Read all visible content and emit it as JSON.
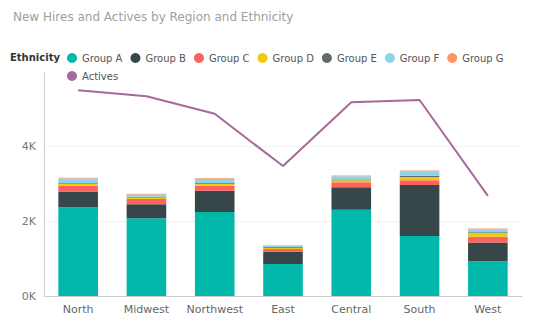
{
  "chart_data": {
    "type": "bar",
    "title": "New Hires and Actives by Region and Ethnicity",
    "legend_title": "Ethnicity",
    "categories": [
      "North",
      "Midwest",
      "Northwest",
      "East",
      "Central",
      "South",
      "West"
    ],
    "stacked": true,
    "grid": true,
    "legend": "top-left",
    "ylim": [
      0,
      6000
    ],
    "yticks": [
      {
        "value": 0,
        "label": "0K"
      },
      {
        "value": 2000,
        "label": "2K"
      },
      {
        "value": 4000,
        "label": "4K"
      }
    ],
    "series": [
      {
        "name": "Group A",
        "color": "#01B8AA",
        "values": [
          2380,
          2080,
          2250,
          860,
          2310,
          1610,
          930
        ]
      },
      {
        "name": "Group B",
        "color": "#374649",
        "values": [
          420,
          380,
          570,
          330,
          600,
          1360,
          500
        ]
      },
      {
        "name": "Group C",
        "color": "#FD625E",
        "values": [
          160,
          140,
          130,
          70,
          140,
          130,
          160
        ]
      },
      {
        "name": "Group D",
        "color": "#F2C80F",
        "values": [
          40,
          40,
          60,
          30,
          50,
          90,
          100
        ]
      },
      {
        "name": "Group E",
        "color": "#5F6B6D",
        "values": [
          20,
          20,
          20,
          20,
          20,
          30,
          20
        ]
      },
      {
        "name": "Group F",
        "color": "#8AD4EB",
        "values": [
          130,
          60,
          110,
          40,
          90,
          120,
          70
        ]
      },
      {
        "name": "Group G",
        "color": "#FE9666",
        "values": [
          20,
          20,
          20,
          10,
          20,
          20,
          30
        ]
      },
      {
        "name": "Actives",
        "color": "#A66999",
        "type": "line",
        "values": [
          5510,
          5350,
          4880,
          3480,
          5190,
          5250,
          2680
        ]
      }
    ]
  }
}
